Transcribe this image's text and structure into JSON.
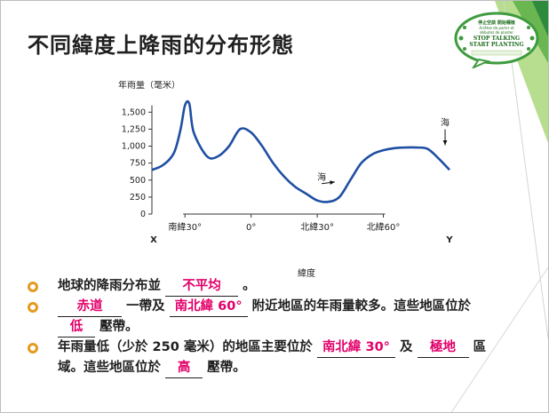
{
  "slide": {
    "title": "不同緯度上降雨的分布形態"
  },
  "logo": {
    "lines": [
      "停止空談 開始種植",
      "Arrêtez de parler et",
      "débutez de planter",
      "STOP TALKING",
      "START PLANTING"
    ]
  },
  "chart_data": {
    "type": "line",
    "ylabel": "年雨量（毫米）",
    "xlabel": "緯度",
    "yticks": [
      "0",
      "250",
      "500",
      "750",
      "1,000",
      "1,250",
      "1,500"
    ],
    "ylim": [
      0,
      1700
    ],
    "xticks": [
      "南緯30°",
      "0°",
      "北緯30°",
      "北緯60°"
    ],
    "x_end_labels": [
      "X",
      "Y"
    ],
    "x": [
      -45,
      -40,
      -35,
      -32,
      -30,
      -28,
      -26,
      -20,
      -15,
      -10,
      -5,
      0,
      5,
      10,
      15,
      20,
      25,
      30,
      35,
      40,
      45,
      50,
      55,
      60,
      65,
      70,
      75,
      80,
      85,
      90
    ],
    "y": [
      650,
      720,
      900,
      1250,
      1600,
      1620,
      1200,
      850,
      850,
      1000,
      1250,
      1200,
      1000,
      750,
      550,
      400,
      300,
      200,
      180,
      250,
      500,
      750,
      880,
      940,
      970,
      980,
      980,
      960,
      820,
      650
    ],
    "annotations": [
      {
        "text": "海",
        "x": 32,
        "y": 500
      },
      {
        "text": "海",
        "x": 88,
        "y": 1300
      }
    ],
    "grid": false
  },
  "bullets": [
    {
      "before": "地球的降雨分布並",
      "blank": "不平均",
      "after": "。"
    },
    {
      "blank1": "赤道",
      "mid1": "一帶及",
      "blank2": "南北緯 60°",
      "mid2": "附近地區的年雨量較多。這些地區位於",
      "blank3": "低",
      "after": "壓帶。"
    },
    {
      "before": "年雨量低（少於 250 毫米）的地區主要位於",
      "blank1": "南北緯 30°",
      "mid1": "及",
      "blank2": "極地",
      "mid2": "區域。這些地區位於",
      "blank3": "高",
      "after": "壓帶。"
    }
  ]
}
